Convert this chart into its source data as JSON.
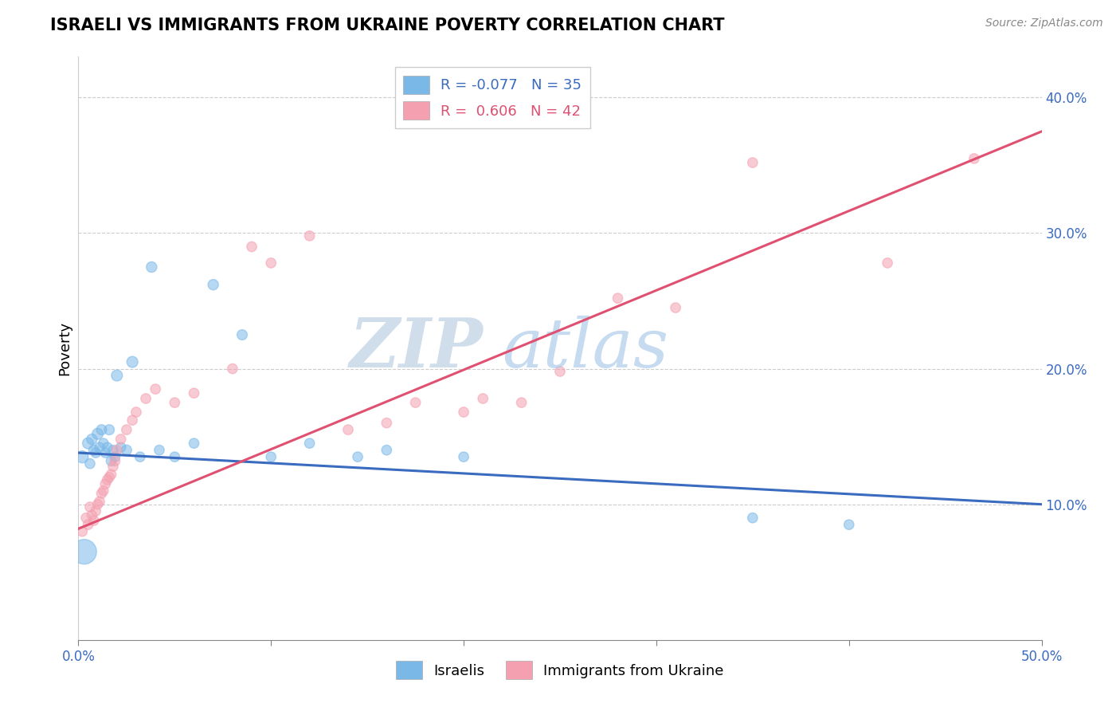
{
  "title": "ISRAELI VS IMMIGRANTS FROM UKRAINE POVERTY CORRELATION CHART",
  "source": "Source: ZipAtlas.com",
  "ylabel": "Poverty",
  "xmin": 0.0,
  "xmax": 0.5,
  "ymin": 0.0,
  "ymax": 0.43,
  "yticks": [
    0.1,
    0.2,
    0.3,
    0.4
  ],
  "ytick_labels": [
    "10.0%",
    "20.0%",
    "30.0%",
    "40.0%"
  ],
  "xticks": [
    0.0,
    0.1,
    0.2,
    0.3,
    0.4,
    0.5
  ],
  "legend_israelis_label": "Israelis",
  "legend_ukraine_label": "Immigrants from Ukraine",
  "israelis_R": "-0.077",
  "israelis_N": "35",
  "ukraine_R": "0.606",
  "ukraine_N": "42",
  "blue_color": "#7ab8e8",
  "pink_color": "#f4a0b0",
  "blue_line_color": "#3a6bbf",
  "pink_line_color": "#e05070",
  "watermark_zip": "ZIP",
  "watermark_atlas": "atlas",
  "israelis_x": [
    0.002,
    0.005,
    0.006,
    0.007,
    0.008,
    0.009,
    0.01,
    0.011,
    0.012,
    0.013,
    0.014,
    0.015,
    0.016,
    0.017,
    0.018,
    0.019,
    0.02,
    0.022,
    0.025,
    0.028,
    0.032,
    0.038,
    0.042,
    0.05,
    0.06,
    0.07,
    0.085,
    0.1,
    0.12,
    0.145,
    0.16,
    0.2,
    0.35,
    0.4,
    0.003
  ],
  "israelis_y": [
    0.135,
    0.145,
    0.13,
    0.148,
    0.14,
    0.138,
    0.152,
    0.142,
    0.155,
    0.145,
    0.138,
    0.142,
    0.155,
    0.132,
    0.14,
    0.135,
    0.195,
    0.142,
    0.14,
    0.205,
    0.135,
    0.275,
    0.14,
    0.135,
    0.145,
    0.262,
    0.225,
    0.135,
    0.145,
    0.135,
    0.14,
    0.135,
    0.09,
    0.085,
    0.065
  ],
  "israelis_sizes": [
    120,
    100,
    80,
    90,
    85,
    80,
    100,
    80,
    85,
    80,
    80,
    80,
    85,
    80,
    80,
    80,
    100,
    80,
    85,
    100,
    80,
    90,
    80,
    80,
    80,
    90,
    85,
    80,
    80,
    80,
    80,
    80,
    80,
    80,
    500
  ],
  "ukraine_x": [
    0.002,
    0.004,
    0.005,
    0.006,
    0.007,
    0.008,
    0.009,
    0.01,
    0.011,
    0.012,
    0.013,
    0.014,
    0.015,
    0.016,
    0.017,
    0.018,
    0.019,
    0.02,
    0.022,
    0.025,
    0.028,
    0.03,
    0.035,
    0.04,
    0.05,
    0.06,
    0.08,
    0.09,
    0.1,
    0.12,
    0.14,
    0.16,
    0.175,
    0.2,
    0.21,
    0.23,
    0.25,
    0.28,
    0.31,
    0.35,
    0.42,
    0.465
  ],
  "ukraine_y": [
    0.08,
    0.09,
    0.085,
    0.098,
    0.092,
    0.088,
    0.095,
    0.1,
    0.102,
    0.108,
    0.11,
    0.115,
    0.118,
    0.12,
    0.122,
    0.128,
    0.132,
    0.14,
    0.148,
    0.155,
    0.162,
    0.168,
    0.178,
    0.185,
    0.175,
    0.182,
    0.2,
    0.29,
    0.278,
    0.298,
    0.155,
    0.16,
    0.175,
    0.168,
    0.178,
    0.175,
    0.198,
    0.252,
    0.245,
    0.352,
    0.278,
    0.355
  ],
  "ukraine_sizes": [
    80,
    80,
    80,
    80,
    80,
    80,
    80,
    80,
    80,
    80,
    80,
    80,
    80,
    80,
    80,
    80,
    80,
    80,
    80,
    80,
    80,
    80,
    80,
    80,
    80,
    80,
    80,
    80,
    80,
    80,
    80,
    80,
    80,
    80,
    80,
    80,
    80,
    80,
    80,
    80,
    80,
    80
  ],
  "blue_trend_x0": 0.0,
  "blue_trend_x1": 0.5,
  "blue_trend_y0": 0.138,
  "blue_trend_y1": 0.1,
  "pink_trend_x0": 0.0,
  "pink_trend_x1": 0.5,
  "pink_trend_y0": 0.082,
  "pink_trend_y1": 0.375
}
